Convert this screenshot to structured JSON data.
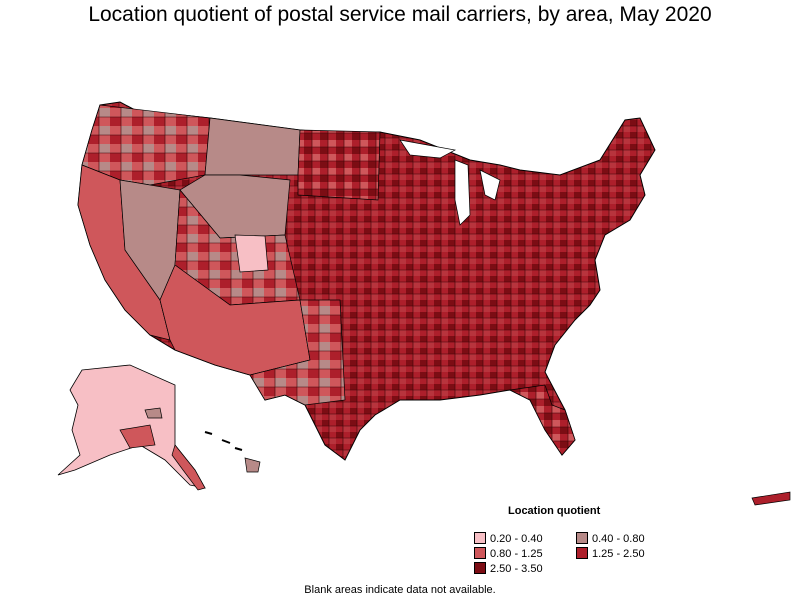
{
  "title": "Location quotient of postal service mail carriers, by area, May 2020",
  "legend": {
    "title": "Location quotient",
    "items": [
      {
        "label": "0.20 - 0.40",
        "color": "#f7bfc5"
      },
      {
        "label": "0.40 - 0.80",
        "color": "#b78a88"
      },
      {
        "label": "0.80 - 1.25",
        "color": "#cf575b"
      },
      {
        "label": "1.25 - 2.50",
        "color": "#ad1f2b"
      },
      {
        "label": "2.50 - 3.50",
        "color": "#7c0d14"
      }
    ]
  },
  "note": "Blank areas indicate data not available."
}
